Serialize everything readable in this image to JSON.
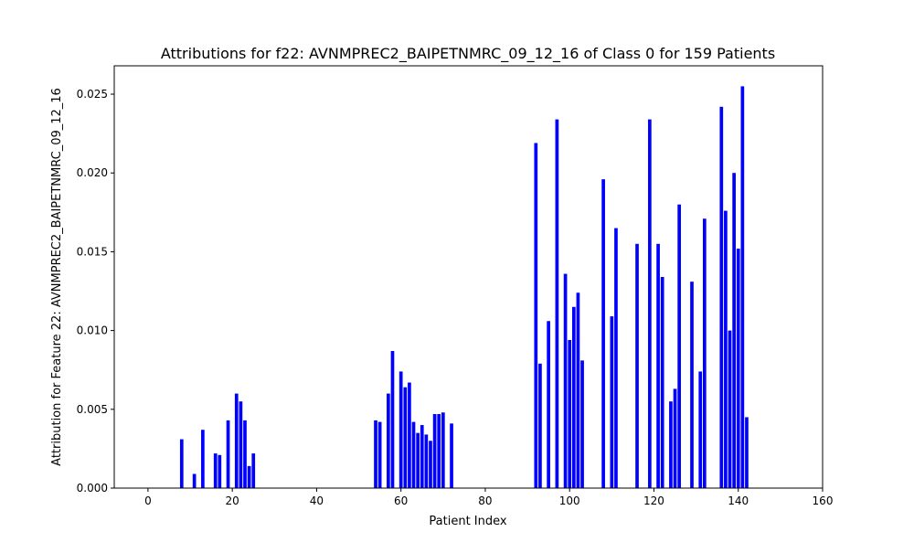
{
  "chart_data": {
    "type": "bar",
    "title": "Attributions for f22: AVNMPREC2_BAIPETNMRC_09_12_16 of Class 0 for 159 Patients",
    "xlabel": "Patient Index",
    "ylabel": "Attribution for Feature 22: AVNMPREC2_BAIPETNMRC_09_12_16",
    "xlim": [
      -8,
      160
    ],
    "ylim": [
      0,
      0.0268
    ],
    "xticks": [
      0,
      20,
      40,
      60,
      80,
      100,
      120,
      140,
      160
    ],
    "yticks": [
      0.0,
      0.005,
      0.01,
      0.015,
      0.02,
      0.025
    ],
    "ytick_labels": [
      "0.000",
      "0.005",
      "0.010",
      "0.015",
      "0.020",
      "0.025"
    ],
    "bar_color": "#0000ff",
    "grid": false,
    "x": [
      8,
      11,
      13,
      16,
      17,
      19,
      21,
      22,
      23,
      24,
      25,
      54,
      55,
      57,
      58,
      60,
      61,
      62,
      63,
      64,
      65,
      66,
      67,
      68,
      69,
      70,
      72,
      92,
      93,
      95,
      97,
      99,
      100,
      101,
      102,
      103,
      108,
      110,
      111,
      116,
      119,
      121,
      122,
      124,
      125,
      126,
      129,
      131,
      132,
      136,
      137,
      138,
      139,
      140,
      141,
      142
    ],
    "values": [
      0.0031,
      0.0009,
      0.0037,
      0.0022,
      0.0021,
      0.0043,
      0.006,
      0.0055,
      0.0043,
      0.0014,
      0.0022,
      0.0043,
      0.0042,
      0.006,
      0.0087,
      0.0074,
      0.0064,
      0.0067,
      0.0042,
      0.0035,
      0.004,
      0.0034,
      0.003,
      0.0047,
      0.0047,
      0.0048,
      0.0041,
      0.0219,
      0.0079,
      0.0106,
      0.0234,
      0.0136,
      0.0094,
      0.0115,
      0.0124,
      0.0081,
      0.0196,
      0.0109,
      0.0165,
      0.0155,
      0.0234,
      0.0155,
      0.0134,
      0.0055,
      0.0063,
      0.018,
      0.0131,
      0.0074,
      0.0171,
      0.0242,
      0.0176,
      0.01,
      0.02,
      0.0152,
      0.0255,
      0.0045
    ]
  }
}
